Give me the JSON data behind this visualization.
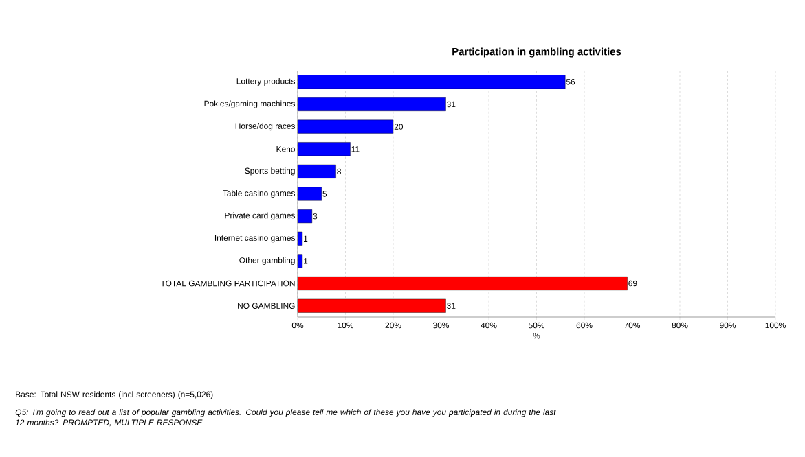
{
  "chart_data": {
    "type": "bar",
    "orientation": "horizontal",
    "title": "Participation in gambling activities",
    "xlabel": "%",
    "categories": [
      "Lottery products",
      "Pokies/gaming machines",
      "Horse/dog races",
      "Keno",
      "Sports betting",
      "Table casino games",
      "Private card games",
      "Internet casino games",
      "Other gambling",
      "TOTAL GAMBLING PARTICIPATION",
      "NO GAMBLING"
    ],
    "values": [
      56,
      31,
      20,
      11,
      8,
      5,
      3,
      1,
      1,
      69,
      31
    ],
    "colors": [
      "#0000ff",
      "#0000ff",
      "#0000ff",
      "#0000ff",
      "#0000ff",
      "#0000ff",
      "#0000ff",
      "#0000ff",
      "#0000ff",
      "#ff0000",
      "#ff0000"
    ],
    "xlim": [
      0,
      100
    ],
    "xticks": [
      {
        "value": 0,
        "label": "0%"
      },
      {
        "value": 10,
        "label": "10%"
      },
      {
        "value": 20,
        "label": "20%"
      },
      {
        "value": 30,
        "label": "30%"
      },
      {
        "value": 40,
        "label": "40%"
      },
      {
        "value": 50,
        "label": "50%"
      },
      {
        "value": 60,
        "label": "60%"
      },
      {
        "value": 70,
        "label": "70%"
      },
      {
        "value": 80,
        "label": "80%"
      },
      {
        "value": 90,
        "label": "90%"
      },
      {
        "value": 100,
        "label": "100%"
      }
    ],
    "grid": "x",
    "data_labels": true,
    "annotations": [
      "Base: Total NSW residents (incl screeners) (n=5,026)",
      "Q5: I'm going to read out a list of popular gambling activities. Could you please tell me which of these you have you participated in during the last 12 months? PROMPTED, MULTIPLE RESPONSE"
    ]
  }
}
